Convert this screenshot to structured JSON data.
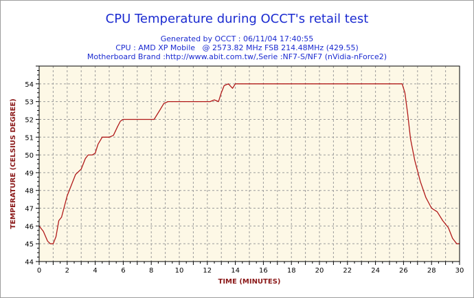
{
  "chart_data": {
    "type": "line",
    "title": "CPU Temperature during OCCT's retail test",
    "subtitles": [
      "Generated by OCCT : 06/11/04 17:40:55",
      "CPU : AMD XP Mobile   @ 2573.82 MHz FSB 214.48MHz (429.55)",
      "Motherboard Brand :http://www.abit.com.tw/,Serie :NF7-S/NF7 (nVidia-nForce2)"
    ],
    "xlabel": "TIME (MINUTES)",
    "ylabel": "TEMPERATURE (CELSIUS DEGREE)",
    "xlim": [
      0,
      30
    ],
    "ylim": [
      44,
      55
    ],
    "xticks": [
      0,
      2,
      4,
      6,
      8,
      10,
      12,
      14,
      16,
      18,
      20,
      22,
      24,
      26,
      28,
      30
    ],
    "yticks": [
      44,
      45,
      46,
      47,
      48,
      49,
      50,
      51,
      52,
      53,
      54
    ],
    "grid": true,
    "series": [
      {
        "color": "#b01818",
        "x": [
          0,
          0.3,
          0.6,
          0.8,
          1.0,
          1.2,
          1.4,
          1.6,
          2.0,
          2.3,
          2.6,
          3.0,
          3.3,
          3.5,
          3.8,
          4.0,
          4.2,
          4.5,
          4.7,
          5.0,
          5.3,
          5.6,
          5.8,
          6.0,
          6.5,
          7.5,
          8.2,
          8.6,
          8.9,
          9.2,
          10.0,
          11.0,
          12.2,
          12.5,
          12.8,
          13.0,
          13.2,
          13.5,
          13.8,
          14.0,
          14.2,
          15.0,
          20.0,
          25.0,
          25.9,
          26.1,
          26.3,
          26.5,
          26.8,
          27.2,
          27.6,
          28.0,
          28.4,
          28.8,
          29.2,
          29.5,
          29.8,
          30.0
        ],
        "y": [
          46.0,
          45.7,
          45.15,
          45.0,
          45.0,
          45.4,
          46.3,
          46.5,
          47.7,
          48.3,
          48.9,
          49.2,
          49.8,
          50.0,
          50.0,
          50.1,
          50.6,
          51.0,
          51.0,
          51.0,
          51.1,
          51.6,
          51.9,
          52.0,
          52.0,
          52.0,
          52.0,
          52.5,
          52.9,
          53.0,
          53.0,
          53.0,
          53.0,
          53.1,
          53.0,
          53.5,
          53.9,
          54.0,
          53.75,
          54.0,
          54.0,
          54.0,
          54.0,
          54.0,
          54.0,
          53.5,
          52.3,
          50.9,
          49.7,
          48.5,
          47.6,
          47.0,
          46.8,
          46.3,
          45.9,
          45.3,
          45.0,
          45.0
        ]
      }
    ]
  }
}
